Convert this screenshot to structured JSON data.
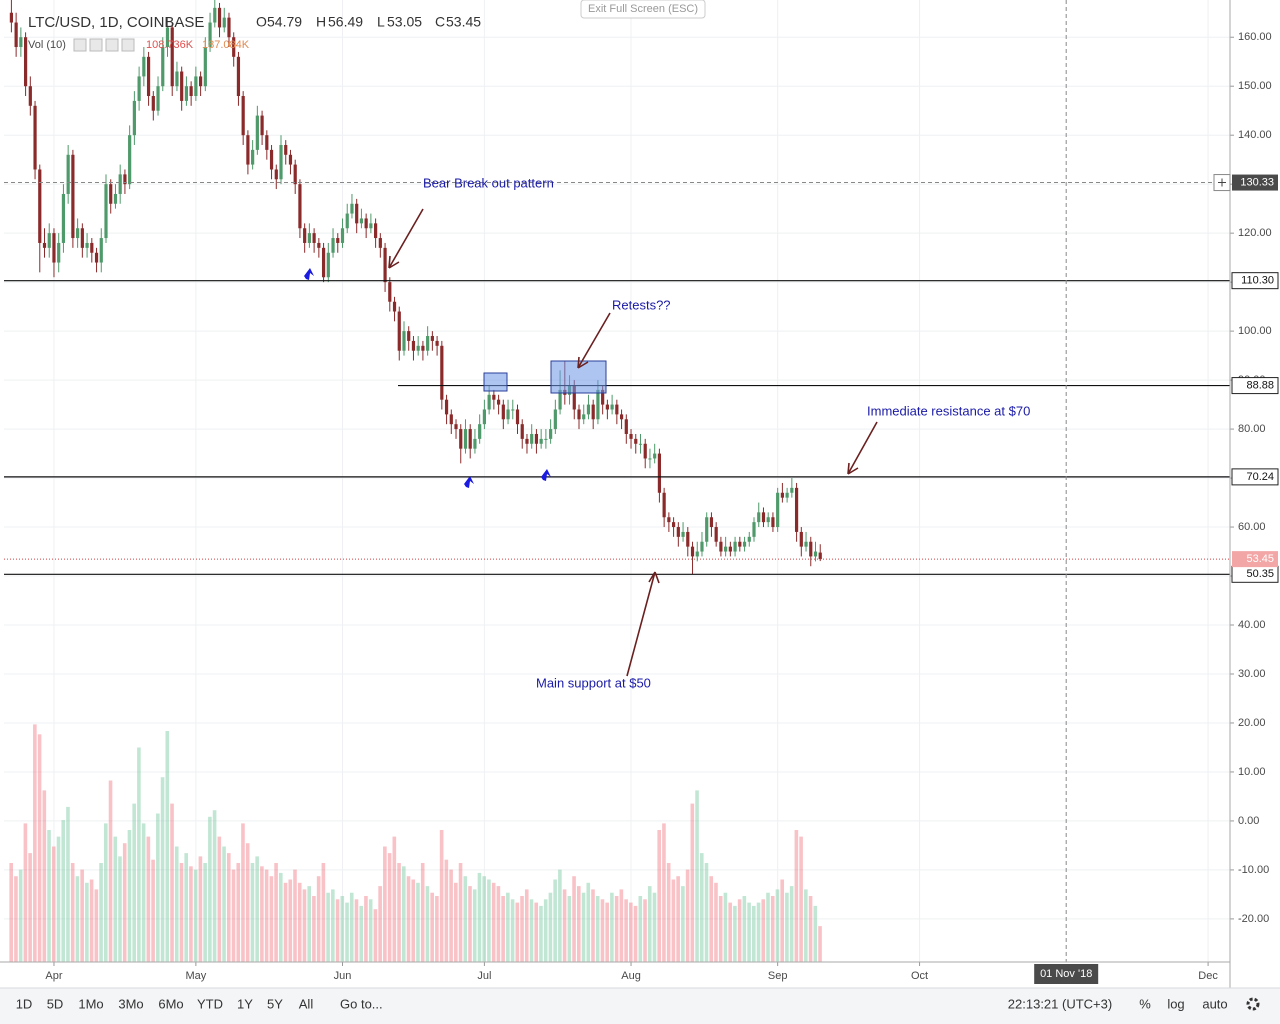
{
  "header": {
    "symbol": "LTC/USD, 1D, COINBASE",
    "o": "O",
    "h": "H",
    "l": "L",
    "c": "C",
    "volume_label": "Vol (10)",
    "volume_values": [
      "108.736K",
      "187.084K"
    ]
  },
  "exit_button": "Exit Full Screen (ESC)",
  "chart_data": {
    "type": "candlestick",
    "x_start": "2018-03-23",
    "up_color": "#4f9a6a",
    "down_color": "#8b2a2a",
    "volume_up_color": "rgba(120,200,160,0.45)",
    "volume_down_color": "rgba(240,120,130,0.45)",
    "candles": [
      [
        165,
        168,
        161,
        163
      ],
      [
        163,
        165,
        156,
        158
      ],
      [
        158,
        162,
        156,
        160
      ],
      [
        160,
        161,
        148,
        150
      ],
      [
        150,
        152,
        144,
        146
      ],
      [
        146,
        147,
        131,
        133
      ],
      [
        133,
        134,
        112,
        118
      ],
      [
        118,
        121,
        115,
        117
      ],
      [
        117,
        122,
        115,
        120
      ],
      [
        120,
        121,
        111,
        114
      ],
      [
        114,
        120,
        112,
        118
      ],
      [
        118,
        130,
        116,
        128
      ],
      [
        128,
        138,
        126,
        136
      ],
      [
        136,
        137,
        117,
        119
      ],
      [
        119,
        123,
        117,
        121
      ],
      [
        121,
        122,
        115,
        117
      ],
      [
        117,
        120,
        115,
        118
      ],
      [
        118,
        119,
        114,
        116
      ],
      [
        116,
        117,
        112,
        114
      ],
      [
        114,
        121,
        112,
        119
      ],
      [
        119,
        132,
        118,
        130
      ],
      [
        130,
        131,
        124,
        126
      ],
      [
        126,
        130,
        125,
        128
      ],
      [
        128,
        134,
        126,
        132
      ],
      [
        132,
        133,
        128,
        130
      ],
      [
        130,
        142,
        129,
        140
      ],
      [
        140,
        149,
        138,
        147
      ],
      [
        147,
        154,
        145,
        152
      ],
      [
        152,
        158,
        150,
        156
      ],
      [
        156,
        157,
        146,
        148
      ],
      [
        148,
        149,
        143,
        145
      ],
      [
        145,
        152,
        144,
        150
      ],
      [
        150,
        160,
        149,
        158
      ],
      [
        158,
        164,
        156,
        162
      ],
      [
        162,
        163,
        148,
        150
      ],
      [
        150,
        155,
        149,
        153
      ],
      [
        153,
        154,
        145,
        147
      ],
      [
        147,
        152,
        146,
        150
      ],
      [
        150,
        151,
        146,
        148
      ],
      [
        148,
        154,
        147,
        152
      ],
      [
        152,
        153,
        148,
        150
      ],
      [
        150,
        160,
        149,
        158
      ],
      [
        158,
        165,
        157,
        163
      ],
      [
        163,
        168,
        162,
        166
      ],
      [
        166,
        167,
        160,
        162
      ],
      [
        162,
        166,
        161,
        164
      ],
      [
        164,
        165,
        158,
        160
      ],
      [
        160,
        161,
        154,
        156
      ],
      [
        156,
        157,
        146,
        148
      ],
      [
        148,
        149,
        138,
        140
      ],
      [
        140,
        141,
        132,
        134
      ],
      [
        134,
        139,
        133,
        137
      ],
      [
        137,
        146,
        136,
        144
      ],
      [
        144,
        145,
        138,
        140
      ],
      [
        140,
        141,
        135,
        137
      ],
      [
        137,
        138,
        131,
        133
      ],
      [
        133,
        134,
        129,
        131
      ],
      [
        131,
        140,
        130,
        138
      ],
      [
        138,
        139,
        134,
        136
      ],
      [
        136,
        137,
        132,
        134
      ],
      [
        134,
        135,
        128,
        130
      ],
      [
        130,
        131,
        119,
        121
      ],
      [
        121,
        122,
        116,
        118
      ],
      [
        118,
        122,
        117,
        120
      ],
      [
        120,
        121,
        116,
        118
      ],
      [
        118,
        119,
        115,
        117
      ],
      [
        117,
        118,
        110,
        111
      ],
      [
        111,
        118,
        110,
        116
      ],
      [
        116,
        121,
        115,
        119
      ],
      [
        119,
        120,
        116,
        118
      ],
      [
        118,
        123,
        117,
        121
      ],
      [
        121,
        126,
        120,
        124
      ],
      [
        124,
        128,
        123,
        126
      ],
      [
        126,
        127,
        120,
        122
      ],
      [
        122,
        125,
        121,
        123
      ],
      [
        123,
        124,
        119,
        121
      ],
      [
        121,
        124,
        120,
        122
      ],
      [
        122,
        123,
        117,
        119
      ],
      [
        119,
        120,
        115,
        117
      ],
      [
        117,
        118,
        108,
        110
      ],
      [
        110,
        111,
        104,
        106
      ],
      [
        106,
        107,
        102,
        104
      ],
      [
        104,
        105,
        94,
        96
      ],
      [
        96,
        102,
        95,
        100
      ],
      [
        100,
        101,
        96,
        98
      ],
      [
        98,
        99,
        94,
        96
      ],
      [
        96,
        99,
        95,
        97
      ],
      [
        97,
        98,
        94,
        96
      ],
      [
        96,
        101,
        95,
        99
      ],
      [
        99,
        100,
        96,
        98
      ],
      [
        98,
        99,
        95,
        97
      ],
      [
        97,
        98,
        84,
        86
      ],
      [
        86,
        87,
        81,
        83
      ],
      [
        83,
        84,
        79,
        81
      ],
      [
        81,
        82,
        78,
        80
      ],
      [
        80,
        81,
        73,
        76
      ],
      [
        76,
        82,
        75,
        80
      ],
      [
        80,
        81,
        74,
        76
      ],
      [
        76,
        80,
        75,
        78
      ],
      [
        78,
        83,
        77,
        81
      ],
      [
        81,
        86,
        80,
        84
      ],
      [
        84,
        89,
        83,
        87
      ],
      [
        87,
        88,
        84,
        86
      ],
      [
        86,
        87,
        83,
        85
      ],
      [
        85,
        86,
        80,
        82
      ],
      [
        82,
        86,
        81,
        84
      ],
      [
        84,
        86,
        82,
        84
      ],
      [
        84,
        85,
        79,
        81
      ],
      [
        81,
        82,
        76,
        78
      ],
      [
        78,
        79,
        75,
        77
      ],
      [
        77,
        81,
        76,
        79
      ],
      [
        79,
        80,
        75,
        77
      ],
      [
        77,
        80,
        76,
        78
      ],
      [
        78,
        80,
        76,
        78
      ],
      [
        78,
        82,
        77,
        80
      ],
      [
        80,
        86,
        79,
        84
      ],
      [
        84,
        92,
        83,
        88
      ],
      [
        88,
        94,
        85,
        87
      ],
      [
        87,
        91,
        85,
        89
      ],
      [
        89,
        90,
        82,
        84
      ],
      [
        84,
        85,
        80,
        82
      ],
      [
        82,
        85,
        81,
        83
      ],
      [
        83,
        87,
        82,
        85
      ],
      [
        85,
        86,
        80,
        82
      ],
      [
        82,
        90,
        81,
        88
      ],
      [
        88,
        89,
        83,
        85
      ],
      [
        85,
        86,
        82,
        84
      ],
      [
        84,
        87,
        83,
        85
      ],
      [
        85,
        86,
        81,
        83
      ],
      [
        83,
        84,
        80,
        82
      ],
      [
        82,
        83,
        77,
        79
      ],
      [
        79,
        80,
        76,
        78
      ],
      [
        78,
        79,
        75,
        77
      ],
      [
        77,
        79,
        75,
        77
      ],
      [
        77,
        78,
        72,
        74
      ],
      [
        74,
        76,
        72,
        74
      ],
      [
        74,
        77,
        73,
        75
      ],
      [
        75,
        76,
        65,
        67
      ],
      [
        67,
        68,
        60,
        62
      ],
      [
        62,
        63,
        59,
        61
      ],
      [
        61,
        62,
        58,
        60
      ],
      [
        60,
        61,
        56,
        58
      ],
      [
        58,
        61,
        57,
        59
      ],
      [
        59,
        60,
        54,
        56
      ],
      [
        56,
        57,
        50.35,
        54
      ],
      [
        54,
        57,
        53,
        55
      ],
      [
        55,
        59,
        54,
        57
      ],
      [
        57,
        63,
        56,
        62
      ],
      [
        62,
        63,
        58,
        60
      ],
      [
        60,
        61,
        56,
        57
      ],
      [
        57,
        58,
        54,
        55
      ],
      [
        55,
        58,
        54,
        56
      ],
      [
        56,
        57,
        54,
        55
      ],
      [
        55,
        58,
        54,
        57
      ],
      [
        57,
        58,
        55,
        56
      ],
      [
        56,
        58,
        55,
        57
      ],
      [
        57,
        59,
        56,
        58
      ],
      [
        58,
        62,
        57,
        61
      ],
      [
        61,
        65,
        60,
        63
      ],
      [
        63,
        64,
        60,
        61
      ],
      [
        61,
        63,
        60,
        62
      ],
      [
        62,
        63,
        59,
        60
      ],
      [
        60,
        68,
        59,
        67
      ],
      [
        67,
        69,
        65,
        66
      ],
      [
        66,
        68,
        65,
        67
      ],
      [
        67,
        70,
        66,
        68
      ],
      [
        68,
        69,
        57,
        59
      ],
      [
        59,
        60,
        54,
        56
      ],
      [
        56,
        59,
        55,
        57
      ],
      [
        57,
        58,
        52,
        54
      ],
      [
        54,
        57,
        53,
        55
      ],
      [
        54.79,
        56.49,
        53.05,
        53.45
      ]
    ],
    "volume": [
      300,
      260,
      280,
      420,
      330,
      720,
      690,
      520,
      400,
      350,
      380,
      430,
      470,
      300,
      260,
      280,
      240,
      250,
      220,
      300,
      420,
      550,
      380,
      320,
      360,
      400,
      480,
      650,
      420,
      380,
      310,
      450,
      560,
      700,
      480,
      350,
      300,
      330,
      290,
      280,
      320,
      300,
      440,
      460,
      380,
      350,
      330,
      280,
      300,
      420,
      360,
      300,
      320,
      290,
      280,
      260,
      300,
      270,
      240,
      250,
      280,
      240,
      220,
      230,
      200,
      260,
      300,
      210,
      220,
      190,
      200,
      180,
      210,
      190,
      170,
      200,
      190,
      160,
      230,
      350,
      330,
      380,
      300,
      290,
      260,
      250,
      240,
      300,
      230,
      210,
      200,
      400,
      310,
      280,
      240,
      300,
      260,
      230,
      220,
      270,
      260,
      250,
      240,
      230,
      200,
      210,
      190,
      180,
      200,
      220,
      190,
      180,
      170,
      190,
      210,
      250,
      280,
      220,
      200,
      260,
      230,
      210,
      240,
      220,
      200,
      190,
      180,
      210,
      200,
      220,
      190,
      180,
      170,
      200,
      190,
      230,
      210,
      400,
      420,
      300,
      250,
      260,
      230,
      280,
      480,
      520,
      330,
      300,
      260,
      240,
      200,
      210,
      180,
      170,
      190,
      200,
      180,
      170,
      180,
      190,
      210,
      200,
      220,
      250,
      210,
      230,
      400,
      380,
      220,
      200,
      170,
      108.736
    ],
    "vlim": [
      0,
      800
    ],
    "ylim": [
      -28.8,
      167.6
    ],
    "yticks": [
      {
        "value": 160,
        "label": "160.00"
      },
      {
        "value": 150,
        "label": "150.00"
      },
      {
        "value": 140,
        "label": "140.00"
      },
      {
        "value": 130,
        "label": "130.00"
      },
      {
        "value": 120,
        "label": "120.00"
      },
      {
        "value": 110,
        "label": "110.00"
      },
      {
        "value": 100,
        "label": "100.00"
      },
      {
        "value": 90,
        "label": "90.00"
      },
      {
        "value": 80,
        "label": "80.00"
      },
      {
        "value": 70,
        "label": "70.00"
      },
      {
        "value": 60,
        "label": "60.00"
      },
      {
        "value": 50,
        "label": "50.00"
      },
      {
        "value": 40,
        "label": "40.00"
      },
      {
        "value": 30,
        "label": "30.00"
      },
      {
        "value": 20,
        "label": "20.00"
      },
      {
        "value": 10,
        "label": "10.00"
      },
      {
        "value": 0,
        "label": "0.00"
      },
      {
        "value": -10,
        "label": "-10.00"
      },
      {
        "value": -20,
        "label": "-20.00"
      }
    ],
    "xticks": [
      {
        "value": "2018-04-01",
        "label": "Apr"
      },
      {
        "value": "2018-05-01",
        "label": "May"
      },
      {
        "value": "2018-06-01",
        "label": "Jun"
      },
      {
        "value": "2018-07-01",
        "label": "Jul"
      },
      {
        "value": "2018-08-01",
        "label": "Aug"
      },
      {
        "value": "2018-09-01",
        "label": "Sep"
      },
      {
        "value": "2018-10-01",
        "label": "Oct"
      },
      {
        "value": "2018-12-01",
        "label": "Dec"
      }
    ],
    "grid": true,
    "levels": [
      {
        "value": 110.3,
        "label": "110.30"
      },
      {
        "value": 88.88,
        "label": "88.88"
      },
      {
        "value": 70.24,
        "label": "70.24"
      },
      {
        "value": 50.35,
        "label": "50.35"
      }
    ],
    "last_price": {
      "value": 53.45,
      "label": "53.45"
    },
    "crosshair": {
      "price": {
        "value": 130.33,
        "label": "130.33"
      },
      "date": {
        "value": "2018-11-01",
        "label": "01 Nov '18"
      }
    },
    "annotations": [
      "Bear Break out pattern",
      "Retests??",
      "Immediate resistance at $70",
      "Main support at $50"
    ]
  },
  "toolbar": {
    "ranges": [
      "1D",
      "5D",
      "1Mo",
      "3Mo",
      "6Mo",
      "YTD",
      "1Y",
      "5Y",
      "All"
    ],
    "goto": "Go to...",
    "clock": "22:13:21 (UTC+3)",
    "options": [
      "%",
      "log",
      "auto"
    ]
  }
}
